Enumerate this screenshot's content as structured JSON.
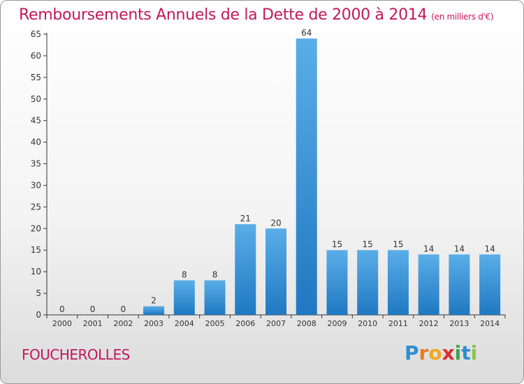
{
  "chart_data": {
    "type": "bar",
    "title": "Remboursements Annuels de la Dette de 2000 à 2014",
    "unit_label": "(en milliers d'€)",
    "categories": [
      "2000",
      "2001",
      "2002",
      "2003",
      "2004",
      "2005",
      "2006",
      "2007",
      "2008",
      "2009",
      "2010",
      "2011",
      "2012",
      "2013",
      "2014"
    ],
    "values": [
      0,
      0,
      0,
      2,
      8,
      8,
      21,
      20,
      64,
      15,
      15,
      15,
      14,
      14,
      14
    ],
    "ylim": [
      0,
      65
    ],
    "yticks": [
      0,
      5,
      10,
      15,
      20,
      25,
      30,
      35,
      40,
      45,
      50,
      55,
      60,
      65
    ],
    "xlabel": "",
    "ylabel": "",
    "grid": false,
    "bar_color_top": "#5aaee8",
    "bar_color_bottom": "#1f78c1"
  },
  "commune": "FOUCHEROLLES",
  "logo": {
    "letters": [
      "P",
      "r",
      "o",
      "x",
      "i",
      "t",
      "i"
    ],
    "colors": [
      "#2e8fd0",
      "#e87a1d",
      "#f2a81d",
      "#d62f2f",
      "#3aa64a",
      "#2e8fd0",
      "#8bc34a"
    ]
  },
  "colors": {
    "title": "#c2185b",
    "axis": "#333333"
  }
}
